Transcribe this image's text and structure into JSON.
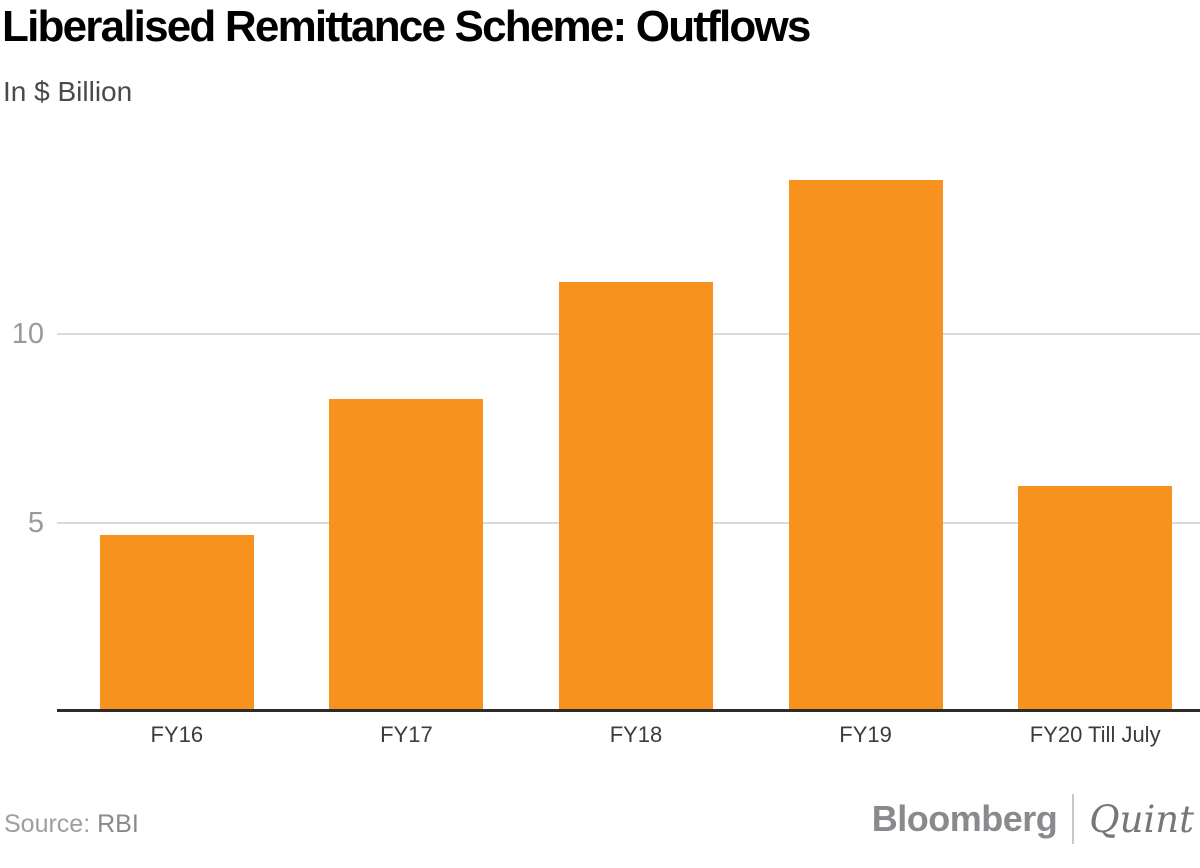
{
  "chart": {
    "title": "Liberalised Remittance Scheme: Outflows",
    "subtitle": "In $ Billion"
  },
  "chart_data": {
    "type": "bar",
    "categories": [
      "FY16",
      "FY17",
      "FY18",
      "FY19",
      "FY20 Till July"
    ],
    "values": [
      4.6,
      8.2,
      11.3,
      14.0,
      5.9
    ],
    "title": "Liberalised Remittance Scheme: Outflows",
    "xlabel": "",
    "ylabel": "In $ Billion",
    "ylim": [
      0,
      15.1
    ],
    "yticks": [
      5,
      10
    ],
    "grid": "horizontal-only",
    "legend": "none",
    "bar_color": "#F8921E"
  },
  "footer": {
    "source_label": "Source:",
    "source_value": "RBI",
    "brand_left": "Bloomberg",
    "brand_right": "Quint"
  },
  "colors": {
    "bar": "#F8921E",
    "axis_line": "#2B2B2B",
    "gridline": "#DADADA",
    "y_tick_label": "#9A9A9A",
    "x_tick_label": "#3C3C3C",
    "title": "#000000",
    "subtitle": "#4A4A4A",
    "source_text": "#9E9E9E",
    "brand_text": "#8A8A8E"
  }
}
